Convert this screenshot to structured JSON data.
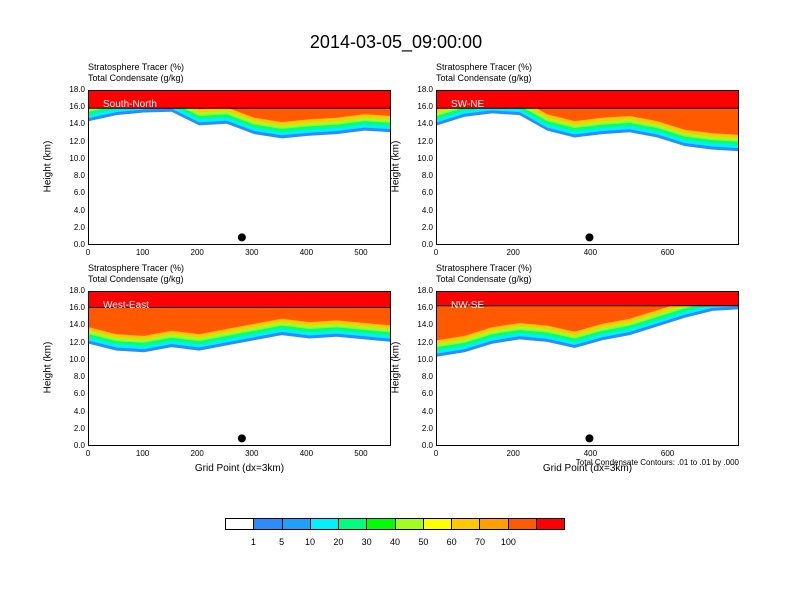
{
  "title": "2014-03-05_09:00:00",
  "legend": {
    "levels": [
      "1",
      "5",
      "10",
      "20",
      "30",
      "40",
      "50",
      "60",
      "70",
      "100"
    ],
    "colors": [
      "#ffffff",
      "#2a8cff",
      "#1ea0ff",
      "#00f0ff",
      "#00ff80",
      "#00ff00",
      "#a0ff20",
      "#ffff00",
      "#ffc800",
      "#ffa000",
      "#ff5a00",
      "#ff0000"
    ]
  },
  "chart_data": [
    {
      "type": "heatmap",
      "panel_label": "South-North",
      "title_line1": "Stratosphere Tracer   (%)",
      "title_line2": "Total Condensate   (g/kg)",
      "ylabel": "Height (km)",
      "xlabel": "",
      "xlim": [
        0,
        555
      ],
      "ylim": [
        0,
        18
      ],
      "xticks": [
        "0",
        "100",
        "200",
        "300",
        "400",
        "500"
      ],
      "yticks": [
        "0.0",
        "2.0",
        "4.0",
        "6.0",
        "8.0",
        "10.0",
        "12.0",
        "14.0",
        "16.0",
        "18.0"
      ],
      "marker": {
        "x": 280,
        "y": 1.0
      },
      "tracer_top_km": 16.0,
      "tracer_base_km": [
        14.5,
        15.2,
        15.5,
        15.6,
        14.0,
        14.2,
        13.0,
        12.5,
        12.8,
        13.0,
        13.4,
        13.2
      ]
    },
    {
      "type": "heatmap",
      "panel_label": "SW-NE",
      "title_line1": "Stratosphere Tracer   (%)",
      "title_line2": "Total Condensate   (g/kg)",
      "ylabel": "Height (km)",
      "xlabel": "",
      "xlim": [
        0,
        785
      ],
      "ylim": [
        0,
        18
      ],
      "xticks": [
        "0",
        "200",
        "400",
        "600"
      ],
      "yticks": [
        "0.0",
        "2.0",
        "4.0",
        "6.0",
        "8.0",
        "10.0",
        "12.0",
        "14.0",
        "16.0",
        "18.0"
      ],
      "marker": {
        "x": 395,
        "y": 1.0
      },
      "tracer_top_km": 16.0,
      "tracer_base_km": [
        14.0,
        15.0,
        15.4,
        15.2,
        13.4,
        12.6,
        13.0,
        13.2,
        12.6,
        11.6,
        11.2,
        11.0
      ]
    },
    {
      "type": "heatmap",
      "panel_label": "West-East",
      "title_line1": "Stratosphere Tracer   (%)",
      "title_line2": "Total Condensate   (g/kg)",
      "ylabel": "Height (km)",
      "xlabel": "Grid Point (dx=3km)",
      "xlim": [
        0,
        555
      ],
      "ylim": [
        0,
        18
      ],
      "xticks": [
        "0",
        "100",
        "200",
        "300",
        "400",
        "500"
      ],
      "yticks": [
        "0.0",
        "2.0",
        "4.0",
        "6.0",
        "8.0",
        "10.0",
        "12.0",
        "14.0",
        "16.0",
        "18.0"
      ],
      "marker": {
        "x": 280,
        "y": 1.0
      },
      "tracer_top_km": 16.2,
      "tracer_base_km": [
        12.0,
        11.2,
        11.0,
        11.6,
        11.2,
        11.8,
        12.4,
        13.0,
        12.6,
        12.8,
        12.5,
        12.2
      ]
    },
    {
      "type": "heatmap",
      "panel_label": "NW-SE",
      "title_line1": "Stratosphere Tracer   (%)",
      "title_line2": "Total Condensate   (g/kg)",
      "ylabel": "Height (km)",
      "xlabel": "Grid Point (dx=3km)",
      "xlim": [
        0,
        785
      ],
      "ylim": [
        0,
        18
      ],
      "xticks": [
        "0",
        "200",
        "400",
        "600"
      ],
      "yticks": [
        "0.0",
        "2.0",
        "4.0",
        "6.0",
        "8.0",
        "10.0",
        "12.0",
        "14.0",
        "16.0",
        "18.0"
      ],
      "marker": {
        "x": 395,
        "y": 1.0
      },
      "tracer_top_km": 16.4,
      "tracer_base_km": [
        10.5,
        11.0,
        12.0,
        12.5,
        12.2,
        11.5,
        12.4,
        13.0,
        14.0,
        15.0,
        15.8,
        16.0
      ],
      "contour_note": "Total Condensate Contours: .01 to .01 by .000"
    }
  ]
}
